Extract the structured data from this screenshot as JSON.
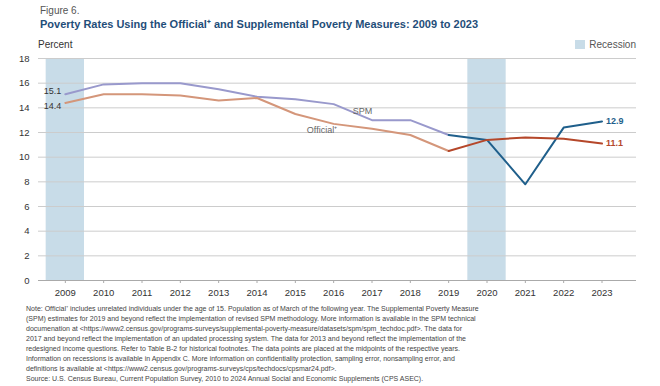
{
  "chart_data": {
    "type": "line",
    "subtitle": "Figure 6.",
    "title": "Poverty Rates Using the Official⁺ and Supplemental Poverty Measures: 2009 to 2023",
    "ylabel": "Percent",
    "x": [
      2009,
      2010,
      2011,
      2012,
      2013,
      2014,
      2015,
      2016,
      2017,
      2018,
      2019,
      2020,
      2021,
      2022,
      2023
    ],
    "series": [
      {
        "name": "SPM",
        "color": "#9999cc",
        "values": [
          15.1,
          15.9,
          16.0,
          16.0,
          15.5,
          14.9,
          14.7,
          14.3,
          13.0,
          13.0,
          11.8,
          null,
          null,
          null,
          null
        ]
      },
      {
        "name": "SPM",
        "color": "#1f5f8b",
        "values": [
          null,
          null,
          null,
          null,
          null,
          null,
          null,
          null,
          null,
          null,
          11.8,
          11.4,
          7.8,
          12.4,
          12.9
        ]
      },
      {
        "name": "Official⁺",
        "color": "#d4967a",
        "values": [
          14.4,
          15.1,
          15.1,
          15.0,
          14.6,
          14.8,
          13.5,
          12.7,
          12.3,
          11.8,
          10.5,
          null,
          null,
          null,
          null
        ]
      },
      {
        "name": "Official⁺",
        "color": "#b5472a",
        "values": [
          null,
          null,
          null,
          null,
          null,
          null,
          null,
          null,
          null,
          null,
          10.5,
          11.4,
          11.6,
          11.5,
          11.1
        ]
      }
    ],
    "shaded_regions": {
      "name": "Recession",
      "color": "#c8dce8",
      "spans": [
        [
          2008.5,
          2009.5
        ],
        [
          2019.5,
          2020.5
        ]
      ]
    },
    "annotations": [
      {
        "text": "SPM",
        "x": 2016.5,
        "y": 13.7,
        "color": "#666666"
      },
      {
        "text": "Official⁺",
        "x": 2015.3,
        "y": 12.2,
        "color": "#666666"
      },
      {
        "text": "12.9",
        "x": 2023,
        "y": 12.9,
        "color": "#1f5f8b"
      },
      {
        "text": "11.1",
        "x": 2023,
        "y": 11.1,
        "color": "#b5472a"
      },
      {
        "text": "15.1",
        "x": 2009,
        "y": 15.1,
        "color": "#333333"
      },
      {
        "text": "14.4",
        "x": 2009,
        "y": 14.4,
        "color": "#333333"
      }
    ],
    "xlim": [
      2008.3,
      2023.9
    ],
    "xticks": [
      2009,
      2010,
      2011,
      2012,
      2013,
      2014,
      2015,
      2016,
      2017,
      2018,
      2019,
      2020,
      2021,
      2022,
      2023
    ],
    "ylim": [
      0,
      18
    ],
    "yticks": [
      0,
      2,
      4,
      6,
      8,
      10,
      12,
      14,
      16,
      18
    ],
    "grid": true,
    "legend": "top-right",
    "caption": [
      "Note: Official⁺ includes unrelated individuals under the age of 15. Population as of March of the following year. The Supplemental Poverty Measure",
      "(SPM) estimates for 2019 and beyond reflect the implementation of revised SPM methodology. More information is available in the SPM technical",
      "documenation at <https://www2.census.gov/programs-surveys/supplemental-poverty-measure/datasets/spm/spm_techdoc.pdf>. The data for",
      "2017 and beyond reflect the implementation of an updated processing system. The data for 2013 and beyond reflect the implementation of the",
      "redesigned income questions. Refer to Table B-2 for historical footnotes. The data points are placed at the midpoints of the respective years.",
      "Information on recessions is available in Appendix C. More information on confidentiality protection, sampling error, nonsampling error, and",
      "definitions is available at <https://www2.census.gov/programs-surveys/cps/techdocs/cpsmar24.pdf>.",
      "Source: U.S. Census Bureau, Current Population Survey, 2010 to 2024 Annual Social and Economic Supplements (CPS ASEC)."
    ]
  }
}
